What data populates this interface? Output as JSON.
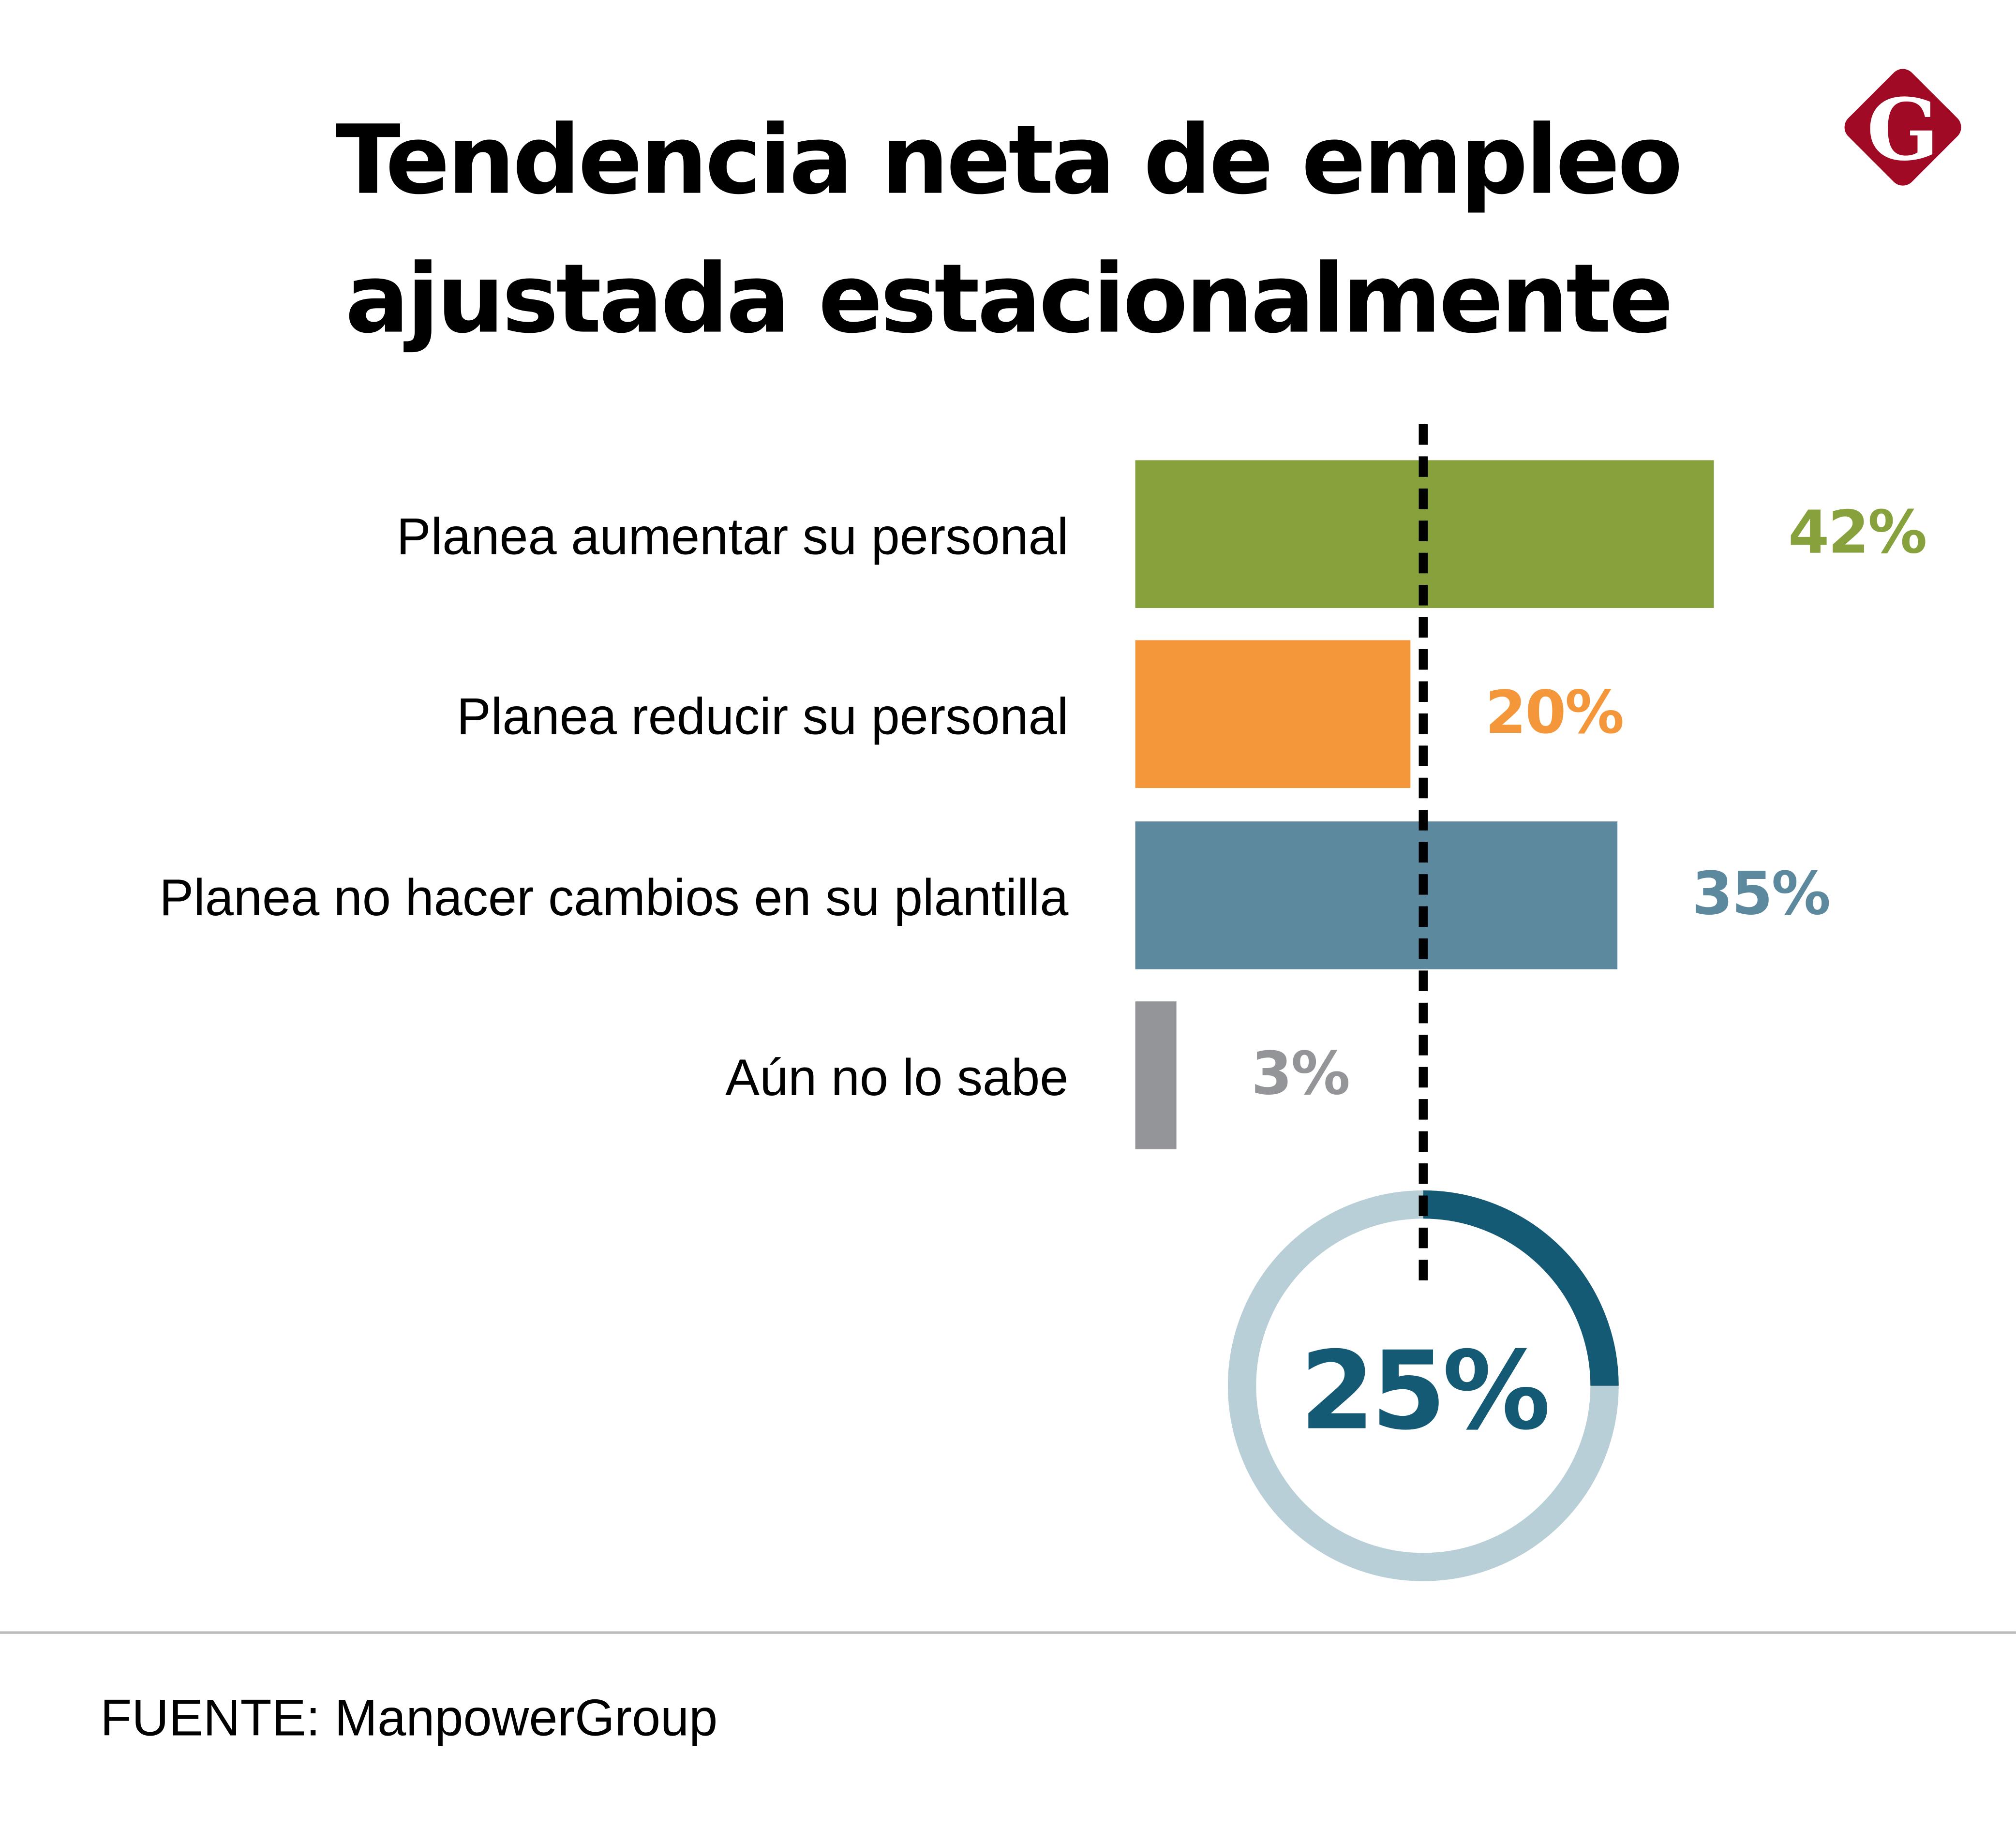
{
  "title": [
    "Tendencia neta de empleo",
    "ajustada estacionalmente"
  ],
  "logo": {
    "text": "G",
    "color": "#a10a24"
  },
  "chart_data": {
    "type": "bar",
    "orientation": "horizontal",
    "categories": [
      "Planea aumentar su personal",
      "Planea reducir su personal",
      "Planea no hacer cambios en su plantilla",
      "Aún no lo sabe"
    ],
    "values": [
      42,
      20,
      35,
      3
    ],
    "value_labels": [
      "42%",
      "20%",
      "35%",
      "3%"
    ],
    "colors": [
      "#87a13d",
      "#f4963a",
      "#5d899f",
      "#939598"
    ],
    "net_employment": {
      "value": 25,
      "label": "25%",
      "color": "#155a74",
      "track_color": "#b9cfd7"
    }
  },
  "source": "FUENTE: ManpowerGroup"
}
